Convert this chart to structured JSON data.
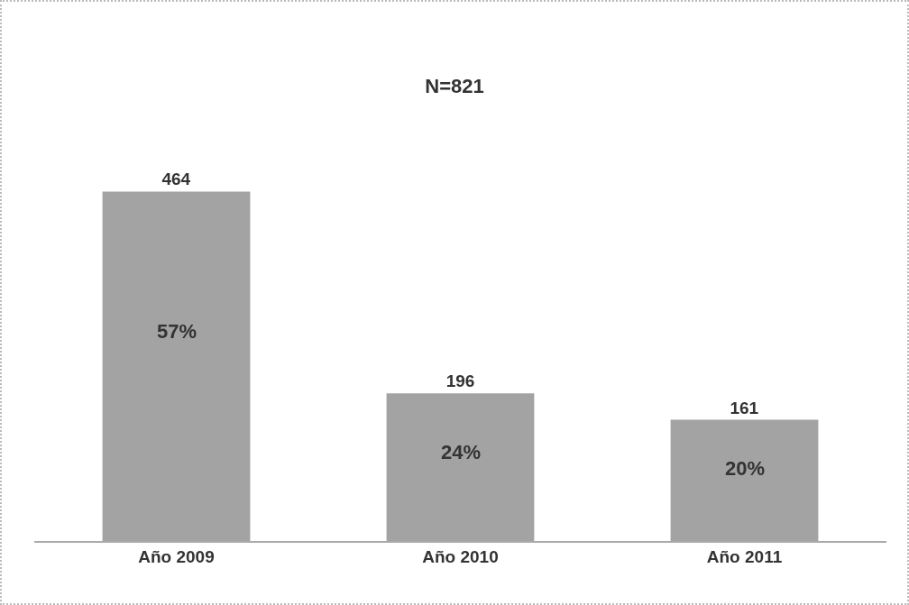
{
  "chart_data": {
    "type": "bar",
    "title": "N=821",
    "categories": [
      "Año 2009",
      "Año 2010",
      "Año 2011"
    ],
    "values": [
      464,
      196,
      161
    ],
    "color": "#a3a3a3",
    "data_labels": true,
    "tick_labels": "x",
    "grid": false,
    "legend": false,
    "annotations": [
      "57%",
      "24%",
      "20%"
    ]
  }
}
